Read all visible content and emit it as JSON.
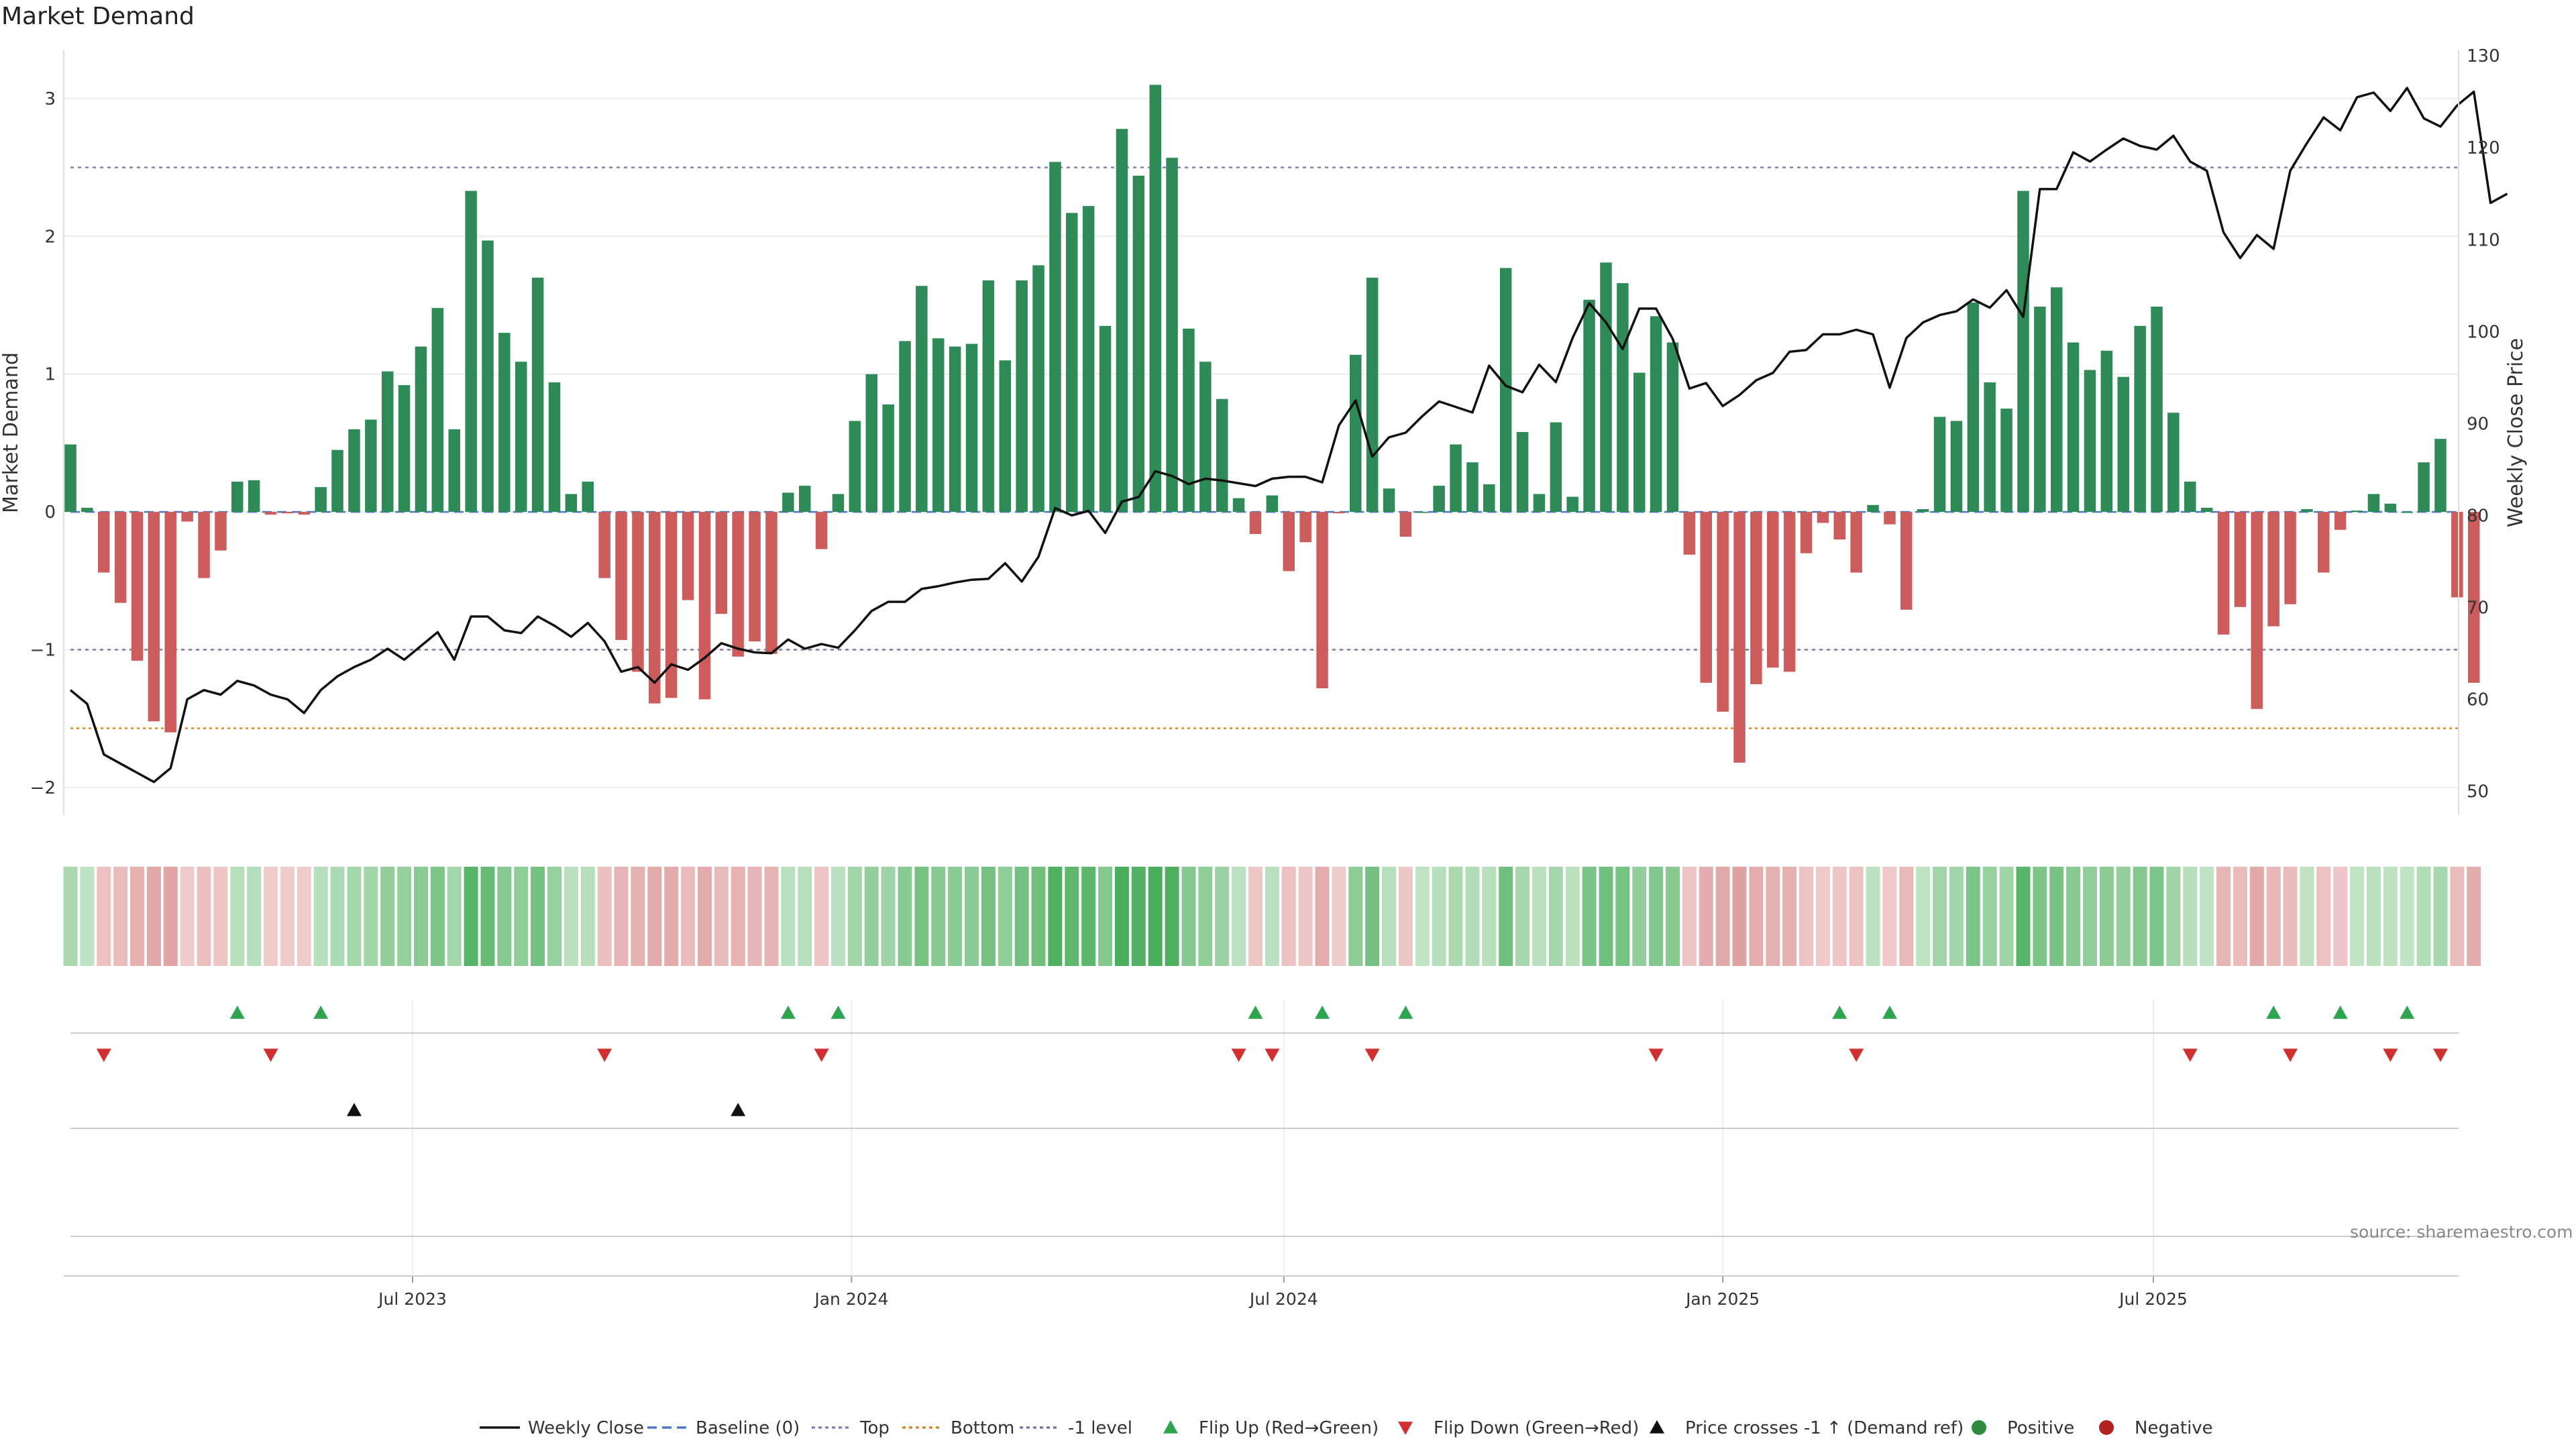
{
  "page": {
    "title": "Market Demand",
    "source": "source: sharemaestro.com"
  },
  "chart_data": {
    "type": "bar",
    "title": "Market Demand",
    "ylabel": "Market Demand",
    "y2label": "Weekly Close Price",
    "ylim": [
      -2.2,
      3.35
    ],
    "y2lim": [
      47.4,
      130.6
    ],
    "yticks": [
      3,
      2,
      1,
      0,
      -1,
      -2
    ],
    "ytick_labels": [
      "3",
      "2",
      "1",
      "0",
      "−1",
      "−2"
    ],
    "y2ticks": [
      130,
      120,
      110,
      100,
      90,
      80,
      70,
      60,
      50
    ],
    "xtick_labels": [
      "Jul 2023",
      "Jan 2024",
      "Jul 2024",
      "Jan 2025",
      "Jul 2025"
    ],
    "xtick_index": [
      20.5,
      46.8,
      72.7,
      99.0,
      124.8
    ],
    "reference_lines": [
      {
        "name": "Top",
        "value": 2.5
      },
      {
        "name": "-1 level",
        "value": -1.0
      },
      {
        "name": "Bottom",
        "value": -1.57
      },
      {
        "name": "Baseline (0)",
        "value": 0
      }
    ],
    "series": [
      {
        "name": "Market Demand",
        "values": [
          0.49,
          0.03,
          -0.44,
          -0.66,
          -1.08,
          -1.52,
          -1.6,
          -0.07,
          -0.48,
          -0.28,
          0.22,
          0.23,
          -0.02,
          -0.01,
          -0.02,
          0.18,
          0.45,
          0.6,
          0.67,
          1.02,
          0.92,
          1.2,
          1.48,
          0.6,
          2.33,
          1.97,
          1.3,
          1.09,
          1.7,
          0.94,
          0.13,
          0.22,
          -0.48,
          -0.93,
          -1.16,
          -1.39,
          -1.35,
          -0.64,
          -1.36,
          -0.74,
          -1.05,
          -0.94,
          -1.03,
          0.14,
          0.19,
          -0.27,
          0.13,
          0.66,
          1.0,
          0.78,
          1.24,
          1.64,
          1.26,
          1.2,
          1.22,
          1.68,
          1.1,
          1.68,
          1.79,
          2.54,
          2.17,
          2.22,
          1.35,
          2.78,
          2.44,
          3.1,
          2.57,
          1.33,
          1.09,
          0.82,
          0.1,
          -0.16,
          0.12,
          -0.43,
          -0.22,
          -1.28,
          -0.01,
          1.14,
          1.7,
          0.17,
          -0.18,
          0.0,
          0.19,
          0.49,
          0.36,
          0.2,
          1.77,
          0.58,
          0.13,
          0.65,
          0.11,
          1.54,
          1.81,
          1.66,
          1.01,
          1.42,
          1.23,
          -0.31,
          -1.24,
          -1.45,
          -1.82,
          -1.25,
          -1.13,
          -1.16,
          -0.3,
          -0.08,
          -0.2,
          -0.44,
          0.05,
          -0.09,
          -0.71,
          0.02,
          0.69,
          0.66,
          1.52,
          0.94,
          0.75,
          2.33,
          1.49,
          1.63,
          1.23,
          1.03,
          1.17,
          0.98,
          1.35,
          1.49,
          0.72,
          0.22,
          0.03,
          -0.89,
          -0.69,
          -1.43,
          -0.83,
          -0.67,
          0.02,
          -0.44,
          -0.13,
          0.01,
          0.13,
          0.06,
          0.0,
          0.36,
          0.53,
          -0.62,
          -1.24
        ]
      },
      {
        "name": "Weekly Close",
        "values": [
          61,
          59.5,
          54,
          53,
          52,
          51,
          52.5,
          60,
          61,
          60.5,
          62,
          61.5,
          60.5,
          60,
          58.5,
          61,
          62.5,
          63.5,
          64.3,
          65.5,
          64.3,
          65.8,
          67.3,
          64.3,
          69,
          69,
          67.5,
          67.2,
          69,
          68,
          66.8,
          68.3,
          66.3,
          63,
          63.5,
          61.8,
          63.8,
          63.2,
          64.5,
          66.1,
          65.5,
          65.1,
          65,
          66.5,
          65.5,
          66,
          65.6,
          67.5,
          69.6,
          70.6,
          70.6,
          72,
          72.3,
          72.7,
          73,
          73.1,
          74.8,
          72.8,
          75.5,
          80.8,
          80,
          80.5,
          78.1,
          81.5,
          82,
          84.8,
          84.3,
          83.4,
          84,
          83.8,
          83.5,
          83.2,
          84,
          84.2,
          84.2,
          83.6,
          89.8,
          92.5,
          86.4,
          88.5,
          89,
          90.8,
          92.4,
          91.8,
          91.2,
          96.3,
          94.1,
          93.4,
          96.4,
          94.5,
          99.3,
          103.1,
          101,
          98.1,
          102.5,
          102.5,
          99.2,
          93.8,
          94.4,
          91.9,
          93.1,
          94.7,
          95.5,
          97.8,
          98,
          99.7,
          99.7,
          100.2,
          99.7,
          93.9,
          99.3,
          101,
          101.8,
          102.2,
          103.5,
          102.6,
          104.5,
          101.6,
          115.5,
          115.5,
          119.5,
          118.5,
          119.8,
          121,
          120.2,
          119.8,
          121.3,
          118.5,
          117.5,
          110.8,
          108,
          110.5,
          109,
          117.5,
          120.5,
          123.3,
          121.9,
          125.5,
          126,
          124,
          126.5,
          123.2,
          122.3,
          124.6,
          126.1,
          114,
          115
        ]
      }
    ],
    "flip_up_index": [
      10,
      15,
      43,
      46,
      71,
      75,
      80,
      106,
      109,
      132,
      136,
      140
    ],
    "flip_down_index": [
      2,
      12,
      32,
      45,
      70,
      72,
      78,
      95,
      107,
      127,
      133,
      139,
      142
    ],
    "price_cross_index": [
      17,
      40
    ],
    "legend": {
      "position": "bottom-center",
      "items": [
        {
          "label": "Weekly Close",
          "style": "solid-line",
          "color": "#111111"
        },
        {
          "label": "Baseline (0)",
          "style": "dashed-line",
          "color": "#4a78c4"
        },
        {
          "label": "Top",
          "style": "dotted-line",
          "color": "#8a7fb0"
        },
        {
          "label": "Bottom",
          "style": "dotted-line",
          "color": "#e08a1e"
        },
        {
          "label": "-1 level",
          "style": "dotted-line",
          "color": "#7a7aa0"
        },
        {
          "label": "Flip Up (Red→Green)",
          "style": "triangle-up",
          "color": "#2ea44f"
        },
        {
          "label": "Flip Down (Green→Red)",
          "style": "triangle-down",
          "color": "#d03030"
        },
        {
          "label": "Price crosses -1 ↑ (Demand ref)",
          "style": "triangle-up",
          "color": "#111111"
        },
        {
          "label": "Positive",
          "style": "circle",
          "color": "#2e8b3e"
        },
        {
          "label": "Negative",
          "style": "circle",
          "color": "#b22222"
        }
      ]
    },
    "colors": {
      "positive": "#2e8b57",
      "negative": "#cd5c5c",
      "price_line": "#111111",
      "flip_up": "#2ea44f",
      "flip_down": "#d03030",
      "cross": "#111111"
    }
  }
}
